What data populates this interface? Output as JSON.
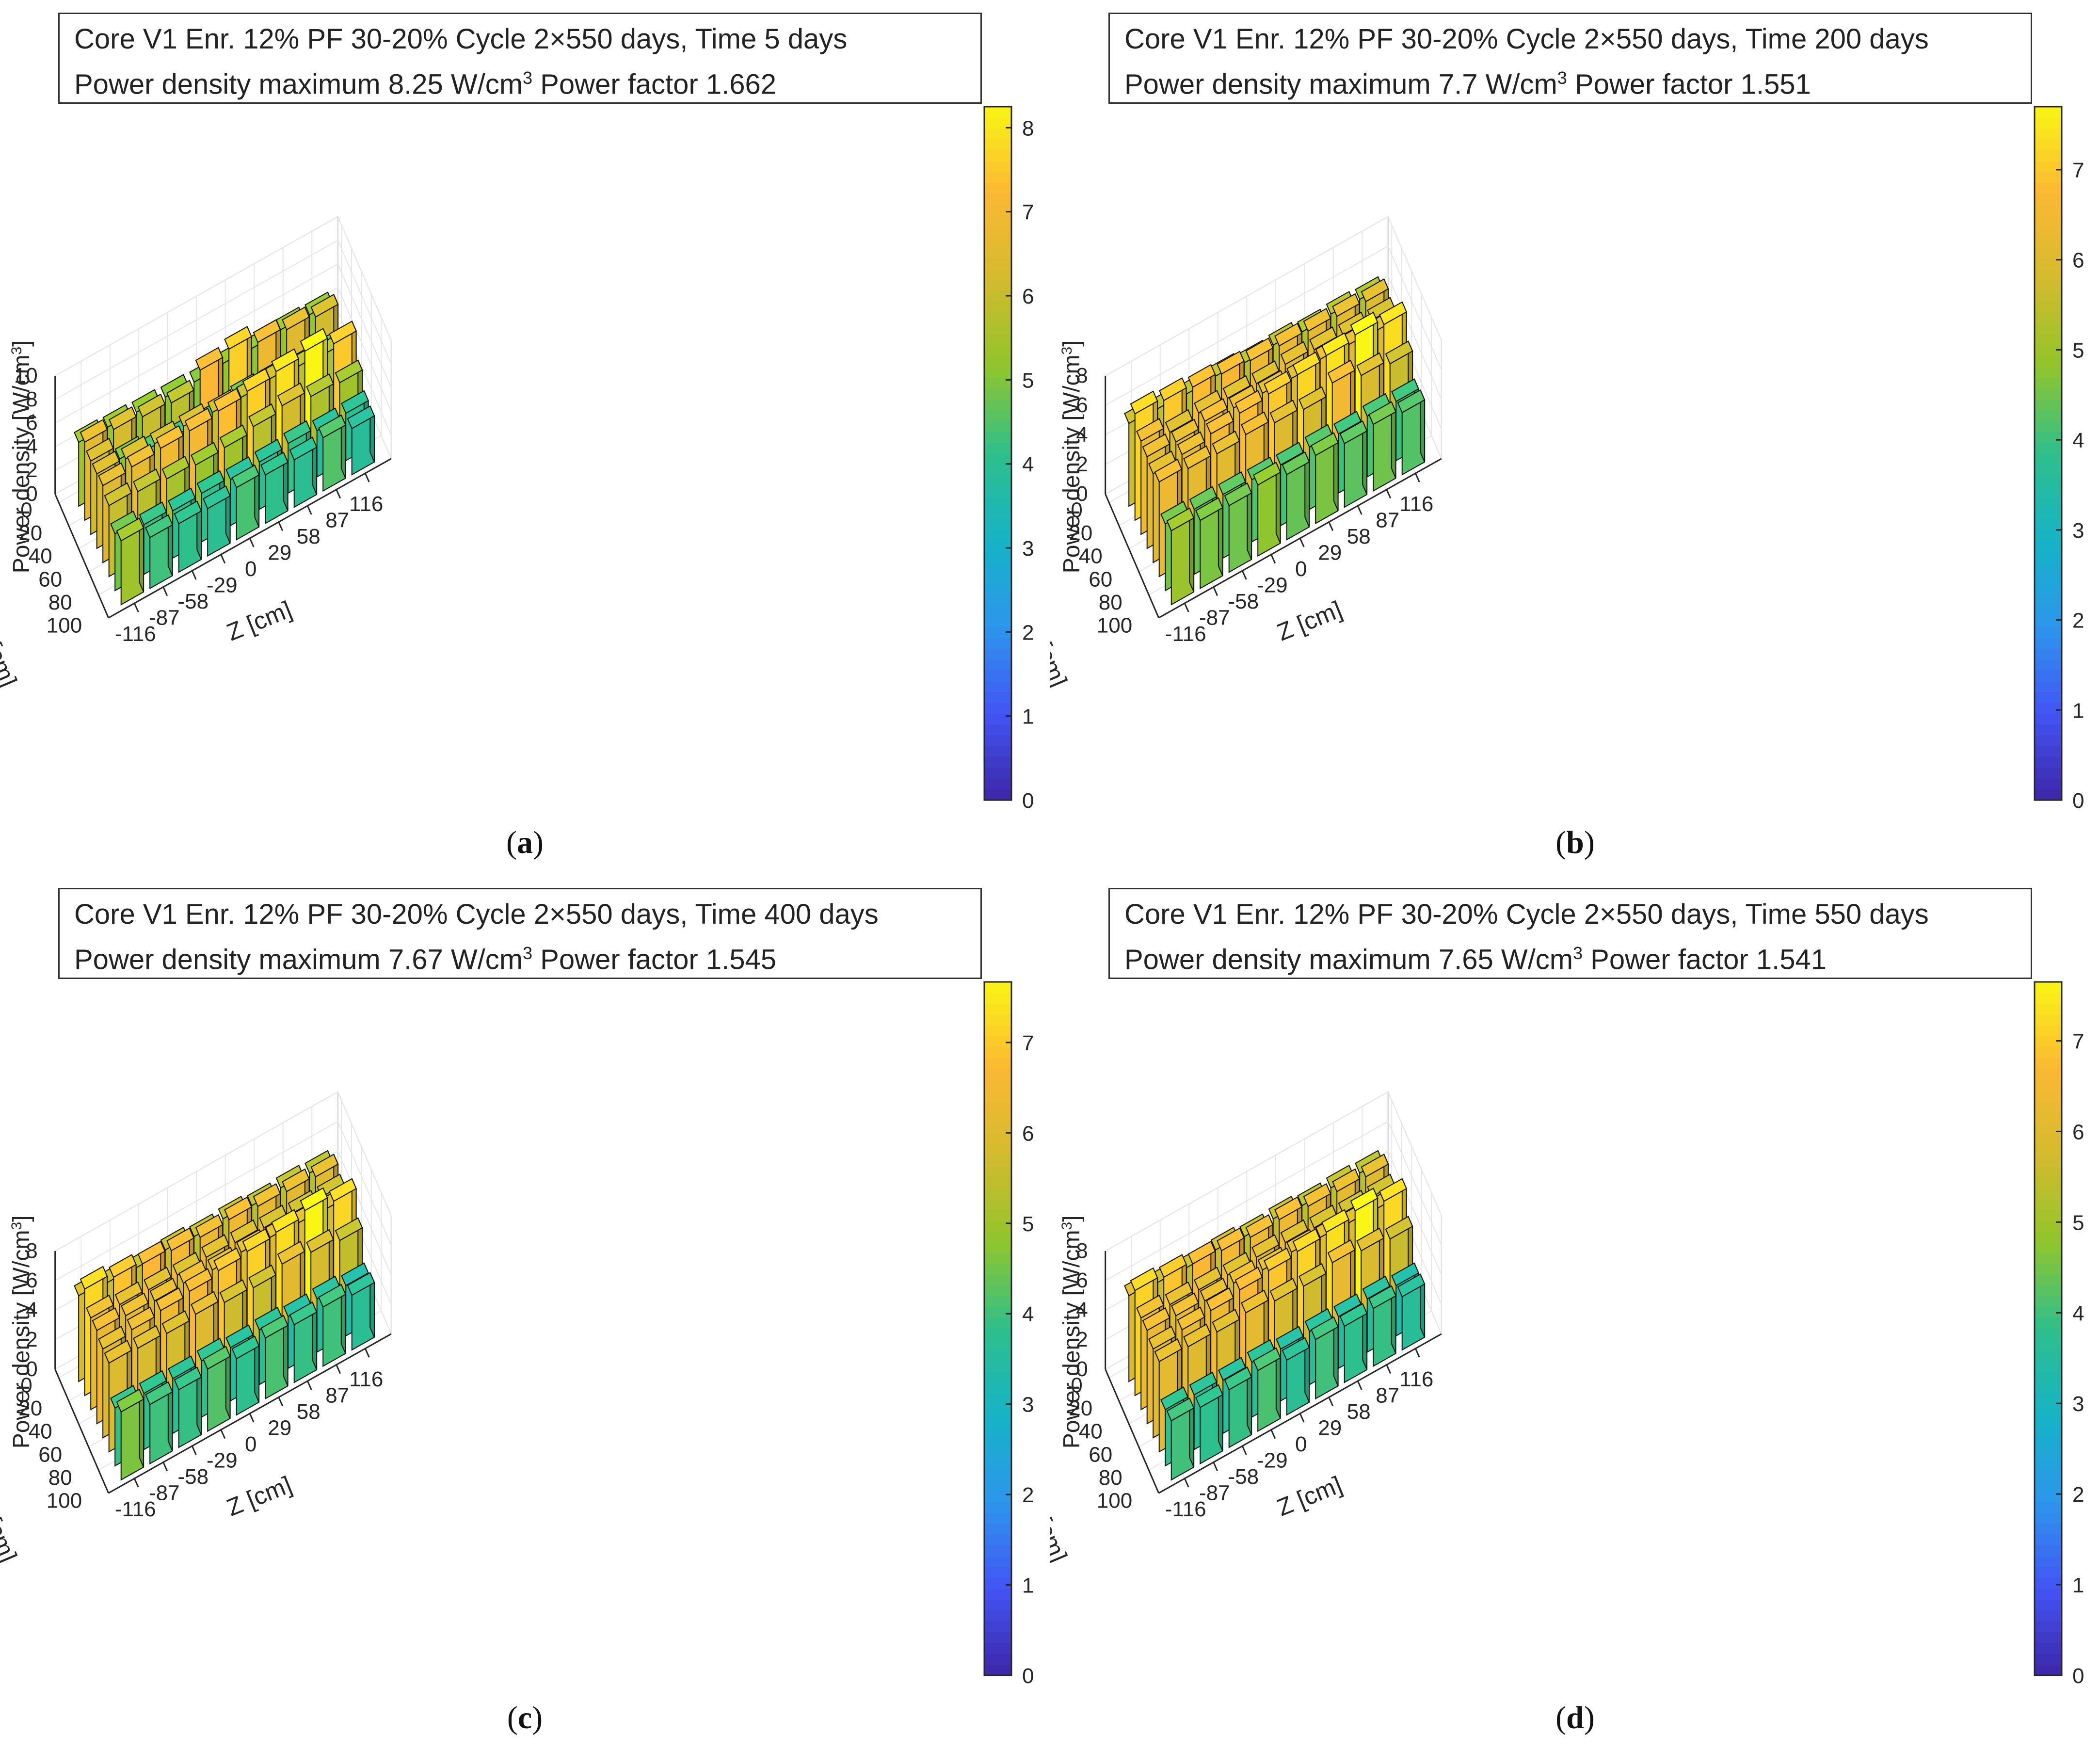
{
  "figure": {
    "panels": [
      {
        "id": "a",
        "caption_letter": "a",
        "header": {
          "line1": "Core  V1  Enr.  12%  PF  30-20%    Cycle  2×550  days,  Time  5  days",
          "line2_prefix": "Power  density  maximum  8.25  W/cm",
          "line2_exp": "3",
          "line2_suffix": "     Power  factor    1.662"
        }
      },
      {
        "id": "b",
        "caption_letter": "b",
        "header": {
          "line1": "Core  V1  Enr.  12%  PF  30-20%    Cycle  2×550  days,  Time  200  days",
          "line2_prefix": "Power  density  maximum  7.7  W/cm",
          "line2_exp": "3",
          "line2_suffix": "     Power  factor    1.551"
        }
      },
      {
        "id": "c",
        "caption_letter": "c",
        "header": {
          "line1": "Core  V1  Enr.  12%  PF  30-20%    Cycle  2×550  days,  Time  400  days",
          "line2_prefix": "Power  density  maximum  7.67  W/cm",
          "line2_exp": "3",
          "line2_suffix": "     Power  factor    1.545"
        }
      },
      {
        "id": "d",
        "caption_letter": "d",
        "header": {
          "line1": "Core  V1  Enr.  12%  PF  30-20%    Cycle  2×550  days,  Time  550  days",
          "line2_prefix": "Power  density  maximum  7.65  W/cm",
          "line2_exp": "3",
          "line2_suffix": "     Power  factor    1.541"
        }
      }
    ]
  },
  "colors": {
    "axis": "#262626",
    "grid": "#e6e6e6",
    "bar_edge": "#111111",
    "parula": [
      "#3e26a8",
      "#4254f4",
      "#2d96ec",
      "#16b3c6",
      "#2ebf8b",
      "#90c52c",
      "#d3bb2e",
      "#fcb834",
      "#f9f514"
    ]
  },
  "chart_data": [
    {
      "type": "bar3d",
      "panel": "a",
      "title": "Core  V1  Enr.  12%  PF  30-20%    Cycle  2×550  days,  Time  5  days",
      "zlabel": "Power  density  [W/cm3]",
      "xlabel": "Z [cm]",
      "ylabel": "R [cm]",
      "x_ticks": [
        "-116",
        "-87",
        "-58",
        "-29",
        "0",
        "29",
        "58",
        "87",
        "116"
      ],
      "y_ticks": [
        "0",
        "20",
        "40",
        "60",
        "80",
        "100"
      ],
      "z_ticks": [
        "0",
        "2",
        "4",
        "6",
        "8",
        "10"
      ],
      "zlim": [
        0,
        10
      ],
      "colorbar": {
        "lim": [
          0,
          8.25
        ],
        "ticks": [
          "0",
          "1",
          "2",
          "3",
          "4",
          "5",
          "6",
          "7",
          "8"
        ]
      },
      "max": 8.25,
      "power_factor": 1.662,
      "values": [
        [
          5.4,
          4.3,
          4.1,
          4.0,
          4.4,
          4.1,
          4.0,
          4.5,
          3.9
        ],
        [
          4.8,
          4.2,
          4.0,
          4.1,
          3.9,
          4.0,
          4.2,
          3.9,
          4.0
        ],
        [
          6.0,
          5.8,
          5.5,
          5.3,
          5.4,
          5.8,
          6.2,
          5.6,
          5.4
        ],
        [
          6.5,
          6.7,
          6.9,
          7.0,
          7.3,
          7.6,
          7.9,
          8.25,
          7.5
        ],
        [
          6.3,
          6.2,
          6.1,
          6.2,
          6.0,
          5.9,
          6.1,
          5.8,
          5.6
        ],
        [
          6.2,
          5.0,
          4.5,
          4.3,
          4.2,
          4.8,
          4.7,
          4.4,
          4.5
        ],
        [
          6.6,
          6.3,
          6.0,
          5.8,
          7.2,
          7.6,
          6.8,
          6.5,
          6.2
        ],
        [
          5.4,
          5.3,
          5.2,
          5.1,
          5.0,
          5.2,
          5.1,
          5.3,
          5.2
        ]
      ]
    },
    {
      "type": "bar3d",
      "panel": "b",
      "title": "Core  V1  Enr.  12%  PF  30-20%    Cycle  2×550  days,  Time  200  days",
      "zlabel": "Power  density  [W/cm3]",
      "xlabel": "Z [cm]",
      "ylabel": "R [cm]",
      "x_ticks": [
        "-116",
        "-87",
        "-58",
        "-29",
        "0",
        "29",
        "58",
        "87",
        "116"
      ],
      "y_ticks": [
        "0",
        "20",
        "40",
        "60",
        "80",
        "100"
      ],
      "z_ticks": [
        "0",
        "2",
        "4",
        "6",
        "8"
      ],
      "zlim": [
        0,
        8
      ],
      "colorbar": {
        "lim": [
          0,
          7.7
        ],
        "ticks": [
          "0",
          "1",
          "2",
          "3",
          "4",
          "5",
          "6",
          "7"
        ]
      },
      "max": 7.7,
      "power_factor": 1.551,
      "values": [
        [
          5.0,
          4.6,
          4.5,
          4.8,
          4.4,
          4.6,
          4.3,
          4.5,
          4.2
        ],
        [
          4.5,
          4.4,
          4.3,
          4.2,
          4.1,
          4.2,
          4.0,
          4.1,
          4.0
        ],
        [
          6.4,
          6.2,
          6.1,
          6.3,
          6.0,
          5.8,
          6.5,
          5.9,
          5.6
        ],
        [
          6.0,
          6.2,
          6.5,
          6.8,
          7.0,
          7.2,
          7.4,
          7.7,
          7.3
        ],
        [
          6.2,
          6.1,
          6.4,
          6.2,
          6.1,
          6.0,
          6.2,
          6.1,
          6.0
        ],
        [
          6.3,
          5.8,
          6.0,
          5.9,
          5.8,
          6.0,
          5.9,
          5.8,
          5.7
        ],
        [
          7.2,
          7.0,
          6.8,
          6.6,
          6.4,
          6.3,
          6.2,
          6.1,
          6.0
        ],
        [
          5.6,
          5.5,
          5.4,
          5.5,
          5.3,
          5.4,
          5.2,
          5.3,
          5.2
        ]
      ]
    },
    {
      "type": "bar3d",
      "panel": "c",
      "title": "Core  V1  Enr.  12%  PF  30-20%    Cycle  2×550  days,  Time  400  days",
      "zlabel": "Power  density  [W/cm3]",
      "xlabel": "Z [cm]",
      "ylabel": "R [cm]",
      "x_ticks": [
        "-116",
        "-87",
        "-58",
        "-29",
        "0",
        "29",
        "58",
        "87",
        "116"
      ],
      "y_ticks": [
        "0",
        "20",
        "40",
        "60",
        "80",
        "100"
      ],
      "z_ticks": [
        "0",
        "2",
        "4",
        "6",
        "8"
      ],
      "zlim": [
        0,
        8
      ],
      "colorbar": {
        "lim": [
          0,
          7.67
        ],
        "ticks": [
          "0",
          "1",
          "2",
          "3",
          "4",
          "5",
          "6",
          "7"
        ]
      },
      "max": 7.67,
      "power_factor": 1.545,
      "values": [
        [
          4.6,
          4.0,
          3.9,
          4.2,
          3.8,
          4.1,
          3.9,
          4.0,
          3.7
        ],
        [
          3.9,
          3.8,
          3.7,
          3.8,
          3.6,
          3.7,
          3.5,
          3.6,
          3.4
        ],
        [
          6.0,
          5.9,
          5.8,
          6.0,
          5.7,
          5.6,
          6.1,
          5.8,
          5.5
        ],
        [
          6.0,
          6.2,
          6.4,
          6.6,
          6.9,
          7.1,
          7.3,
          7.67,
          7.2
        ],
        [
          6.3,
          6.2,
          6.1,
          6.2,
          6.0,
          6.1,
          6.0,
          5.9,
          5.8
        ],
        [
          6.2,
          6.0,
          5.9,
          5.8,
          5.9,
          5.8,
          5.7,
          5.6,
          5.6
        ],
        [
          7.2,
          6.9,
          6.7,
          6.5,
          6.3,
          6.4,
          6.2,
          6.1,
          6.0
        ],
        [
          5.8,
          5.6,
          5.5,
          5.6,
          5.4,
          5.5,
          5.3,
          5.4,
          5.3
        ]
      ]
    },
    {
      "type": "bar3d",
      "panel": "d",
      "title": "Core  V1  Enr.  12%  PF  30-20%    Cycle  2×550  days,  Time  550  days",
      "zlabel": "Power  density  [W/cm3]",
      "xlabel": "Z [cm]",
      "ylabel": "R [cm]",
      "x_ticks": [
        "-116",
        "-87",
        "-58",
        "-29",
        "0",
        "29",
        "58",
        "87",
        "116"
      ],
      "y_ticks": [
        "0",
        "20",
        "40",
        "60",
        "80",
        "100"
      ],
      "z_ticks": [
        "0",
        "2",
        "4",
        "6",
        "8"
      ],
      "zlim": [
        0,
        8
      ],
      "colorbar": {
        "lim": [
          0,
          7.65
        ],
        "ticks": [
          "0",
          "1",
          "2",
          "3",
          "4",
          "5",
          "6",
          "7"
        ]
      },
      "max": 7.65,
      "power_factor": 1.541,
      "values": [
        [
          4.0,
          3.8,
          3.9,
          4.1,
          3.7,
          4.0,
          3.8,
          3.9,
          3.6
        ],
        [
          3.8,
          3.7,
          3.6,
          3.7,
          3.5,
          3.6,
          3.5,
          3.6,
          3.4
        ],
        [
          6.1,
          6.0,
          5.9,
          6.1,
          5.8,
          5.7,
          6.2,
          5.9,
          5.6
        ],
        [
          6.0,
          6.2,
          6.4,
          6.7,
          6.9,
          7.1,
          7.3,
          7.65,
          7.2
        ],
        [
          6.3,
          6.2,
          6.1,
          6.2,
          6.0,
          6.1,
          6.0,
          5.9,
          5.8
        ],
        [
          6.2,
          6.0,
          5.9,
          5.8,
          5.9,
          5.8,
          5.7,
          5.6,
          5.6
        ],
        [
          7.1,
          6.9,
          6.7,
          6.5,
          6.3,
          6.4,
          6.2,
          6.1,
          6.0
        ],
        [
          5.8,
          5.6,
          5.5,
          5.6,
          5.4,
          5.5,
          5.3,
          5.4,
          5.3
        ]
      ]
    }
  ]
}
